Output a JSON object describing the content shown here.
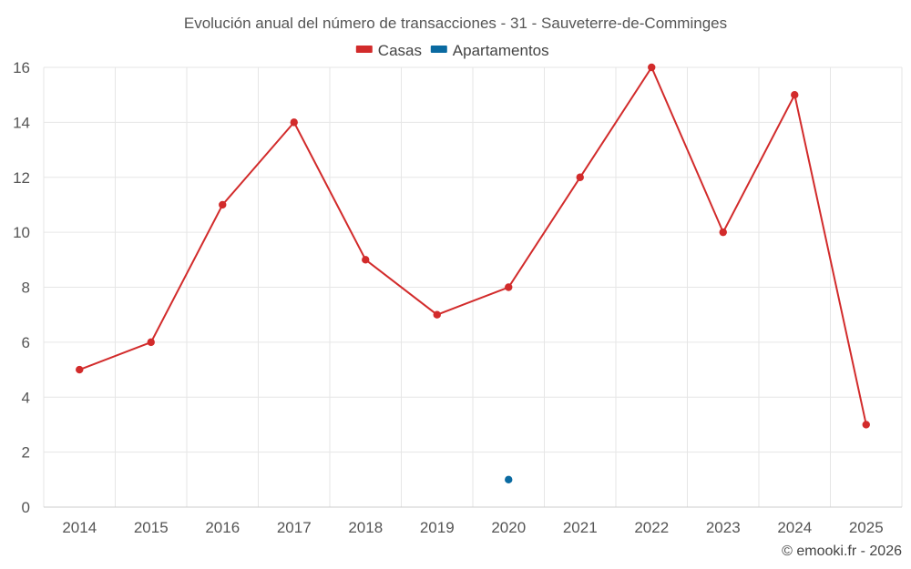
{
  "chart_data": {
    "type": "line",
    "title": "Evolución anual del número de transacciones - 31 - Sauveterre-de-Comminges",
    "xlabel": "",
    "ylabel": "",
    "categories": [
      "2014",
      "2015",
      "2016",
      "2017",
      "2018",
      "2019",
      "2020",
      "2021",
      "2022",
      "2023",
      "2024",
      "2025"
    ],
    "ylim": [
      0,
      16
    ],
    "yticks": [
      0,
      2,
      4,
      6,
      8,
      10,
      12,
      14,
      16
    ],
    "grid": true,
    "legend_position": "top-center",
    "series": [
      {
        "name": "Casas",
        "color": "#d22b2b",
        "values": [
          5,
          6,
          11,
          14,
          9,
          7,
          8,
          12,
          16,
          10,
          15,
          3
        ]
      },
      {
        "name": "Apartamentos",
        "color": "#0a6aa1",
        "values": [
          null,
          null,
          null,
          null,
          null,
          null,
          1,
          null,
          null,
          null,
          null,
          null
        ]
      }
    ]
  },
  "credit": "© emooki.fr - 2026"
}
